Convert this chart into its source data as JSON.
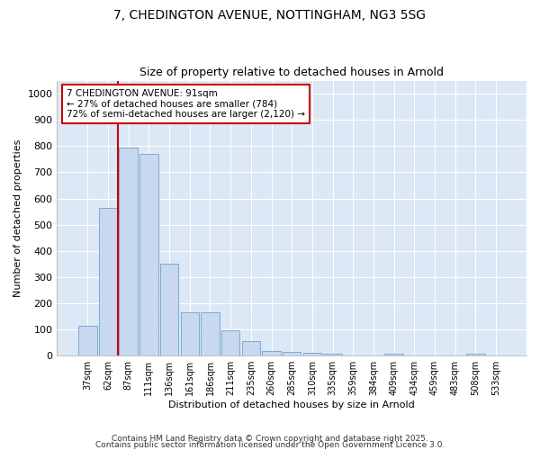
{
  "title_line1": "7, CHEDINGTON AVENUE, NOTTINGHAM, NG3 5SG",
  "title_line2": "Size of property relative to detached houses in Arnold",
  "xlabel": "Distribution of detached houses by size in Arnold",
  "ylabel": "Number of detached properties",
  "categories": [
    "37sqm",
    "62sqm",
    "87sqm",
    "111sqm",
    "136sqm",
    "161sqm",
    "186sqm",
    "211sqm",
    "235sqm",
    "260sqm",
    "285sqm",
    "310sqm",
    "335sqm",
    "359sqm",
    "384sqm",
    "409sqm",
    "434sqm",
    "459sqm",
    "483sqm",
    "508sqm",
    "533sqm"
  ],
  "values": [
    115,
    565,
    795,
    770,
    350,
    167,
    167,
    98,
    55,
    18,
    13,
    10,
    7,
    0,
    0,
    8,
    0,
    0,
    0,
    8,
    0
  ],
  "bar_color": "#c8d8f0",
  "bar_edge_color": "#7aaad0",
  "plot_bg_color": "#dce8f5",
  "fig_bg_color": "#ffffff",
  "vline_color": "#cc0000",
  "annotation_text": "7 CHEDINGTON AVENUE: 91sqm\n← 27% of detached houses are smaller (784)\n72% of semi-detached houses are larger (2,120) →",
  "annotation_edge_color": "#cc0000",
  "ylim": [
    0,
    1050
  ],
  "yticks": [
    0,
    100,
    200,
    300,
    400,
    500,
    600,
    700,
    800,
    900,
    1000
  ],
  "footer_line1": "Contains HM Land Registry data © Crown copyright and database right 2025.",
  "footer_line2": "Contains public sector information licensed under the Open Government Licence 3.0."
}
